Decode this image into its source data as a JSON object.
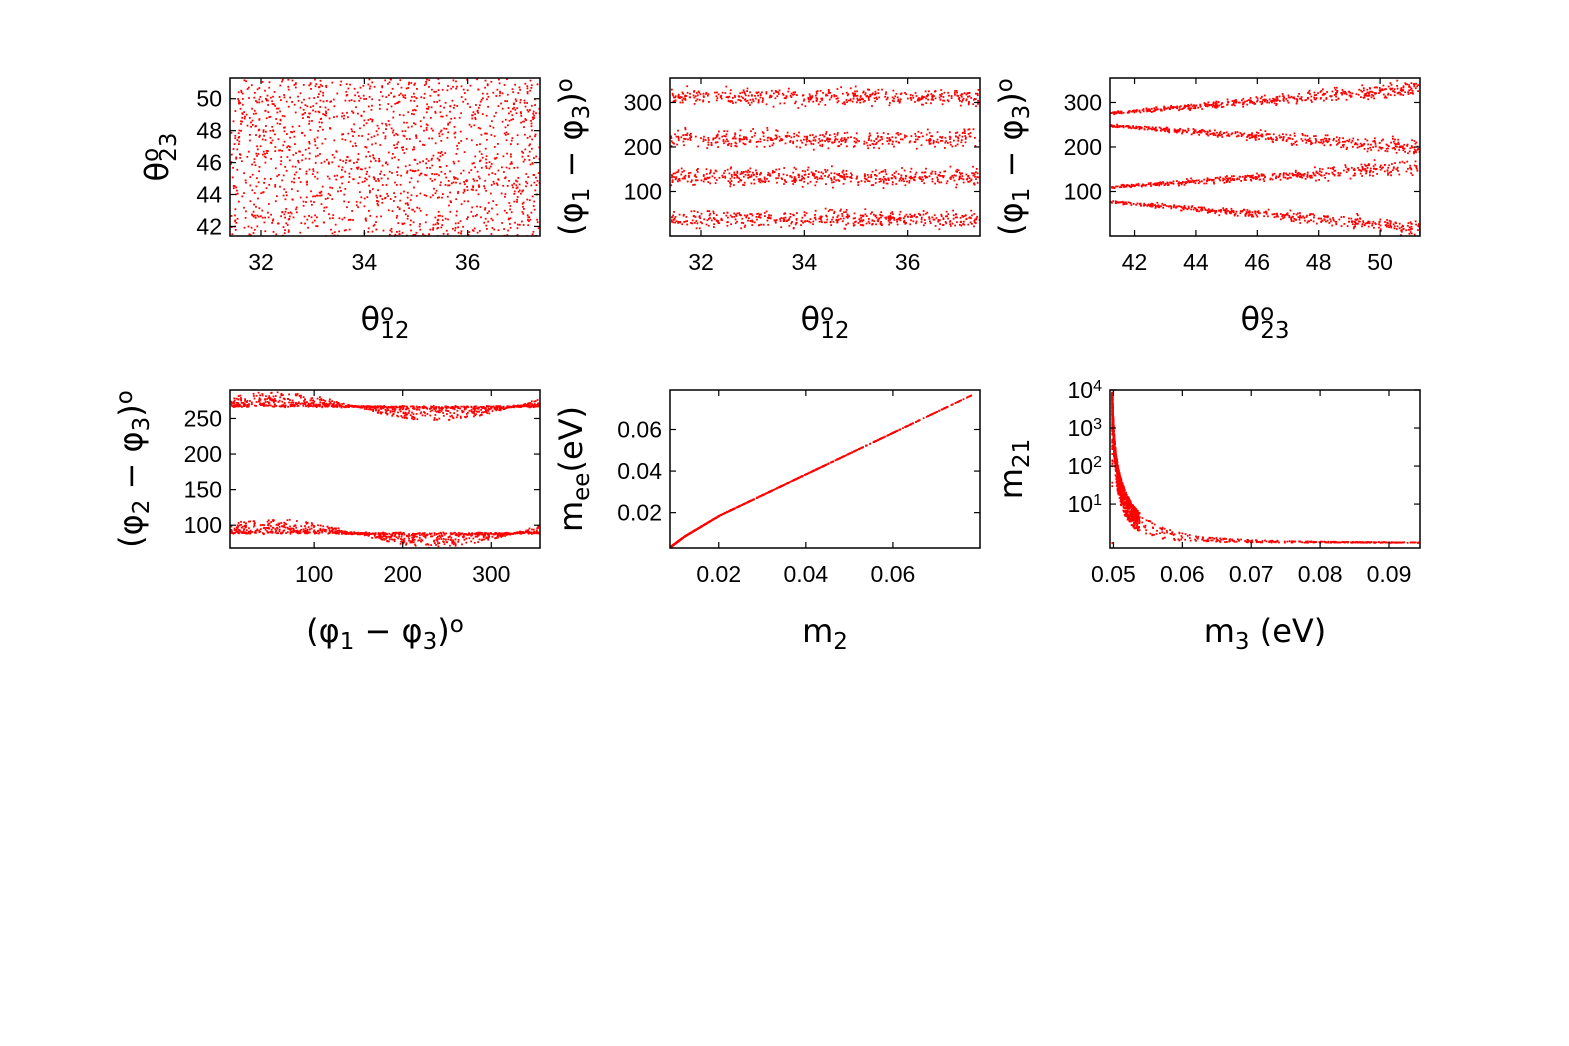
{
  "colors": {
    "points": "#ff0000",
    "axes": "#000000",
    "background": "#ffffff"
  },
  "chart_data": [
    {
      "type": "scatter",
      "id": "p1",
      "xlabel": {
        "base": "θ",
        "sup": "o",
        "sub": "12"
      },
      "ylabel": {
        "base": "θ",
        "sup": "o",
        "sub": "23"
      },
      "xlim": [
        31.4,
        37.4
      ],
      "ylim": [
        41.4,
        51.3
      ],
      "xticks": [
        32,
        34,
        36
      ],
      "yticks": [
        42,
        44,
        46,
        48,
        50
      ],
      "yscale": "linear",
      "series": [
        {
          "pattern": "uniform",
          "n": 1600,
          "x_range": [
            31.4,
            37.4
          ],
          "y_range": [
            41.4,
            51.3
          ]
        }
      ]
    },
    {
      "type": "scatter",
      "id": "p2",
      "xlabel": {
        "base": "θ",
        "sup": "o",
        "sub": "12"
      },
      "ylabel": {
        "paren": [
          "φ",
          "1",
          " − ",
          "φ",
          "3"
        ],
        "sup": "o"
      },
      "xlim": [
        31.4,
        37.4
      ],
      "ylim": [
        0,
        355
      ],
      "xticks": [
        32,
        34,
        36
      ],
      "yticks": [
        100,
        200,
        300
      ],
      "yscale": "linear",
      "series": [
        {
          "pattern": "bands",
          "n": 1800,
          "x_range": [
            31.4,
            37.4
          ],
          "band_centers": [
            40,
            135,
            220,
            315
          ],
          "band_halfwidth": 28
        }
      ]
    },
    {
      "type": "scatter",
      "id": "p3",
      "xlabel": {
        "base": "θ",
        "sup": "o",
        "sub": "23"
      },
      "ylabel": {
        "paren": [
          "φ",
          "1",
          " − ",
          "φ",
          "3"
        ],
        "sup": "o"
      },
      "xlim": [
        41.2,
        51.3
      ],
      "ylim": [
        0,
        355
      ],
      "xticks": [
        42,
        44,
        46,
        48,
        50
      ],
      "yticks": [
        100,
        200,
        300
      ],
      "yscale": "linear",
      "series": [
        {
          "pattern": "fan",
          "n": 1800,
          "x_range": [
            41.2,
            51.3
          ],
          "branches": [
            {
              "from": [
                41.2,
                278
              ],
              "to": [
                51.3,
                335
              ]
            },
            {
              "from": [
                41.2,
                250
              ],
              "to": [
                51.3,
                200
              ]
            },
            {
              "from": [
                41.2,
                112
              ],
              "to": [
                51.3,
                158
              ]
            },
            {
              "from": [
                41.2,
                78
              ],
              "to": [
                51.3,
                22
              ]
            }
          ]
        }
      ]
    },
    {
      "type": "scatter",
      "id": "p4",
      "xlabel": {
        "paren": [
          "φ",
          "1",
          " − ",
          "φ",
          "3"
        ],
        "sup": "o"
      },
      "ylabel": {
        "paren": [
          "φ",
          "2",
          " − ",
          "φ",
          "3"
        ],
        "sup": "o"
      },
      "xlim": [
        5,
        355
      ],
      "ylim": [
        68,
        290
      ],
      "xticks": [
        100,
        200,
        300
      ],
      "yticks": [
        100,
        150,
        200,
        250
      ],
      "yscale": "linear",
      "series": [
        {
          "pattern": "bowtie",
          "n": 1800,
          "upper_level": 268,
          "lower_level": 90,
          "peaks": [
            55,
            125,
            235,
            305
          ]
        }
      ]
    },
    {
      "type": "scatter",
      "id": "p5",
      "xlabel": {
        "base": "m",
        "sub": "2"
      },
      "ylabel": {
        "base": "m",
        "sub": "ee",
        "tail": "(eV)"
      },
      "xlim": [
        0.0088,
        0.08
      ],
      "ylim": [
        0.003,
        0.079
      ],
      "xticks": [
        0.02,
        0.04,
        0.06
      ],
      "yticks": [
        0.02,
        0.04,
        0.06
      ],
      "yscale": "linear",
      "series": [
        {
          "pattern": "curve",
          "n": 900,
          "points": [
            [
              0.0088,
              0.004
            ],
            [
              0.012,
              0.009
            ],
            [
              0.02,
              0.019
            ],
            [
              0.04,
              0.039
            ],
            [
              0.06,
              0.059
            ],
            [
              0.078,
              0.077
            ]
          ]
        }
      ]
    },
    {
      "type": "scatter",
      "id": "p6",
      "xlabel": {
        "base": "m",
        "sub": "3",
        "tail": " (eV)"
      },
      "ylabel": {
        "base": "m",
        "sub": "21"
      },
      "xlim": [
        0.0495,
        0.0945
      ],
      "ylim": [
        0.7,
        10000
      ],
      "xticks": [
        0.05,
        0.06,
        0.07,
        0.08,
        0.09
      ],
      "xticklabels": [
        "0.05",
        "0.06",
        "0.07",
        "0.08",
        "0.09"
      ],
      "yticks": [
        10,
        100,
        1000,
        10000
      ],
      "yticklabels": [
        {
          "base": "10",
          "exp": "1"
        },
        {
          "base": "10",
          "exp": "2"
        },
        {
          "base": "10",
          "exp": "3"
        },
        {
          "base": "10",
          "exp": "4"
        }
      ],
      "yscale": "log",
      "series": [
        {
          "pattern": "decay",
          "n": 1600,
          "x_min": 0.0497,
          "x_max": 0.0945
        }
      ]
    }
  ]
}
